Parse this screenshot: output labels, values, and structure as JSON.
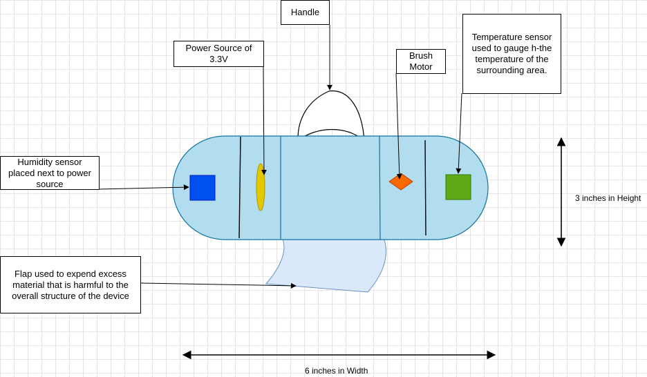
{
  "labels": {
    "handle": "Handle",
    "power_source": "Power Source of\n3.3V",
    "brush_motor": "Brush\nMotor",
    "temperature_sensor": "Temperature sensor\nused to gauge h-the\ntemperature of the\nsurrounding area.",
    "humidity_sensor": "Humidity sensor\nplaced next to power\nsource",
    "flap": "Flap used to expend excess\nmaterial that is harmful to the\noverall structure of the device"
  },
  "dimensions": {
    "height": "3 inches in Height",
    "width": "6 inches in Width"
  },
  "colors": {
    "body_fill": "#b1ddee",
    "body_stroke": "#10739e",
    "humidity_sensor": "#0050ef",
    "power_source": "#e3c800",
    "brush_motor": "#fa6800",
    "temperature_sensor": "#60a917",
    "flap_fill": "#dae8fc"
  }
}
